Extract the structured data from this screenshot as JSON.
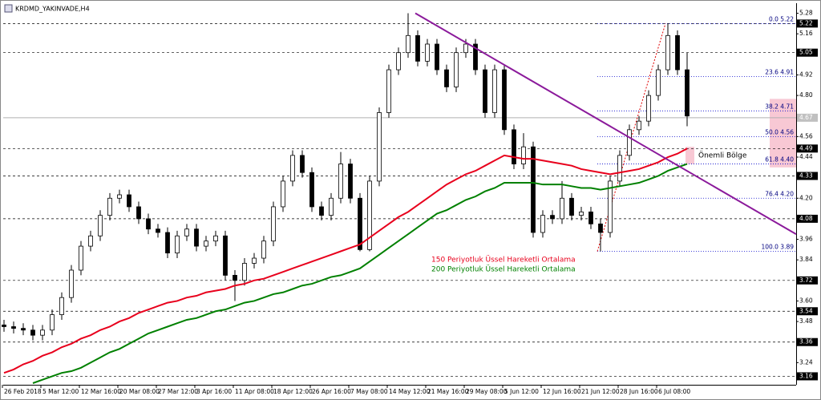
{
  "chart_data": {
    "type": "candlestick",
    "title": "KRDMD_YAKINVADE,H4",
    "x_labels": [
      "26 Feb 2018",
      "5 Mar 12:00",
      "12 Mar 16:00",
      "20 Mar 08:00",
      "27 Mar 12:00",
      "3 Apr 16:00",
      "11 Apr 08:00",
      "18 Apr 12:00",
      "26 Apr 16:00",
      "7 May 08:00",
      "14 May 12:00",
      "21 May 16:00",
      "29 May 08:00",
      "5 Jun 12:00",
      "12 Jun 16:00",
      "21 Jun 12:00",
      "28 Jun 16:00",
      "6 Jul 08:00"
    ],
    "open": [
      3.46,
      3.45,
      3.44,
      3.43,
      3.4,
      3.43,
      3.52,
      3.62,
      3.78,
      3.92,
      3.98,
      4.1,
      4.2,
      4.22,
      4.15,
      4.08,
      4.02,
      4.0,
      3.88,
      3.98,
      4.02,
      3.92,
      3.95,
      3.98,
      3.75,
      3.72,
      3.82,
      3.85,
      3.95,
      4.15,
      4.3,
      4.45,
      4.35,
      4.15,
      4.1,
      4.2,
      4.4,
      4.2,
      3.9,
      4.3,
      4.7,
      4.95,
      5.05,
      5.15,
      5.0,
      5.1,
      4.95,
      4.85,
      5.05,
      5.1,
      4.95,
      4.7,
      4.95,
      4.6,
      4.4,
      4.5,
      4.0,
      4.1,
      4.08,
      4.2,
      4.1,
      4.12,
      4.05,
      4.0,
      4.3,
      4.45,
      4.6,
      4.65,
      4.8,
      4.95,
      5.15,
      4.95
    ],
    "high": [
      3.49,
      3.48,
      3.47,
      3.46,
      3.46,
      3.55,
      3.65,
      3.81,
      3.95,
      4.01,
      4.13,
      4.23,
      4.25,
      4.25,
      4.18,
      4.11,
      4.05,
      4.03,
      4.01,
      4.05,
      4.05,
      3.98,
      4.01,
      4.01,
      3.78,
      3.85,
      3.88,
      3.98,
      4.18,
      4.33,
      4.48,
      4.48,
      4.38,
      4.18,
      4.23,
      4.47,
      4.43,
      4.23,
      4.33,
      4.73,
      4.98,
      5.08,
      5.28,
      5.18,
      5.13,
      5.13,
      4.98,
      5.08,
      5.13,
      5.13,
      4.98,
      4.98,
      4.98,
      4.63,
      4.58,
      4.53,
      4.13,
      4.13,
      4.3,
      4.23,
      4.15,
      4.15,
      4.08,
      4.33,
      4.48,
      4.63,
      4.68,
      4.83,
      4.98,
      5.22,
      5.18,
      5.05
    ],
    "low": [
      3.42,
      3.41,
      3.4,
      3.37,
      3.37,
      3.4,
      3.49,
      3.59,
      3.75,
      3.89,
      3.95,
      4.07,
      4.17,
      4.12,
      4.05,
      3.99,
      3.97,
      3.85,
      3.85,
      3.95,
      3.89,
      3.89,
      3.92,
      3.72,
      3.6,
      3.69,
      3.79,
      3.82,
      3.92,
      4.12,
      4.27,
      4.32,
      4.12,
      4.07,
      4.07,
      4.17,
      4.17,
      3.89,
      3.89,
      4.27,
      4.67,
      4.92,
      5.02,
      4.97,
      4.97,
      4.92,
      4.82,
      4.82,
      5.02,
      4.92,
      4.67,
      4.67,
      4.57,
      4.37,
      4.37,
      3.97,
      3.97,
      4.05,
      4.05,
      4.07,
      4.07,
      4.02,
      3.89,
      3.97,
      4.27,
      4.42,
      4.57,
      4.62,
      4.77,
      4.92,
      4.92,
      4.62
    ],
    "close": [
      3.45,
      3.44,
      3.43,
      3.4,
      3.43,
      3.52,
      3.62,
      3.78,
      3.92,
      3.98,
      4.1,
      4.2,
      4.22,
      4.15,
      4.08,
      4.02,
      4.0,
      3.88,
      3.98,
      4.02,
      3.92,
      3.95,
      3.98,
      3.75,
      3.72,
      3.82,
      3.85,
      3.95,
      4.15,
      4.3,
      4.45,
      4.35,
      4.15,
      4.1,
      4.2,
      4.4,
      4.2,
      3.9,
      4.3,
      4.7,
      4.95,
      5.05,
      5.15,
      5.0,
      5.1,
      4.95,
      4.85,
      5.05,
      5.1,
      4.95,
      4.7,
      4.95,
      4.6,
      4.4,
      4.5,
      4.0,
      4.1,
      4.08,
      4.2,
      4.1,
      4.12,
      4.05,
      4.0,
      4.3,
      4.45,
      4.6,
      4.65,
      4.8,
      4.95,
      5.15,
      4.95,
      4.68
    ],
    "series": [
      {
        "name": "150 Periyotluk Üssel Hareketli Ortalama",
        "color": "#e8001c",
        "values": [
          3.18,
          3.2,
          3.23,
          3.25,
          3.28,
          3.3,
          3.33,
          3.35,
          3.38,
          3.4,
          3.43,
          3.45,
          3.48,
          3.5,
          3.53,
          3.55,
          3.57,
          3.59,
          3.6,
          3.62,
          3.63,
          3.65,
          3.66,
          3.67,
          3.69,
          3.7,
          3.72,
          3.73,
          3.75,
          3.77,
          3.79,
          3.81,
          3.83,
          3.85,
          3.87,
          3.89,
          3.91,
          3.93,
          3.97,
          4.01,
          4.05,
          4.09,
          4.12,
          4.16,
          4.2,
          4.24,
          4.28,
          4.31,
          4.34,
          4.36,
          4.39,
          4.42,
          4.45,
          4.44,
          4.43,
          4.43,
          4.42,
          4.41,
          4.4,
          4.39,
          4.37,
          4.36,
          4.35,
          4.34,
          4.35,
          4.36,
          4.37,
          4.39,
          4.41,
          4.44,
          4.46,
          4.49
        ]
      },
      {
        "name": "200 Periyotluk Üssel Hareketli Ortalama",
        "color": "#008000",
        "values": [
          null,
          null,
          null,
          3.12,
          3.14,
          3.16,
          3.18,
          3.19,
          3.21,
          3.24,
          3.27,
          3.3,
          3.32,
          3.35,
          3.38,
          3.41,
          3.43,
          3.45,
          3.47,
          3.49,
          3.5,
          3.52,
          3.54,
          3.55,
          3.57,
          3.59,
          3.6,
          3.62,
          3.64,
          3.65,
          3.67,
          3.69,
          3.7,
          3.72,
          3.74,
          3.75,
          3.77,
          3.79,
          3.83,
          3.87,
          3.91,
          3.95,
          3.99,
          4.03,
          4.07,
          4.11,
          4.13,
          4.16,
          4.19,
          4.21,
          4.24,
          4.26,
          4.29,
          4.29,
          4.29,
          4.29,
          4.28,
          4.28,
          4.28,
          4.27,
          4.26,
          4.26,
          4.25,
          4.26,
          4.27,
          4.28,
          4.29,
          4.31,
          4.33,
          4.36,
          4.38,
          4.4
        ]
      }
    ],
    "ylim": [
      3.12,
      5.32
    ],
    "yticks": [
      5.28,
      5.16,
      4.92,
      {
        "value": 4.8,
        "label": "4.80"
      },
      4.56,
      4.44,
      {
        "value": 4.2,
        "label": "4.20"
      },
      3.96,
      3.84,
      {
        "value": 3.6,
        "label": "3.60"
      },
      3.48,
      3.24
    ],
    "levels": [
      5.22,
      5.05,
      4.49,
      4.33,
      4.08,
      3.72,
      3.54,
      3.36,
      3.16
    ],
    "current_price": 4.67,
    "trendline": {
      "from": {
        "index": 42.75,
        "price": 5.28
      },
      "to": {
        "index": 82.33,
        "price": 3.99
      },
      "color": "#8b1a9b"
    },
    "fibonacci": {
      "from": {
        "index": 61.67,
        "price": 3.89
      },
      "to": {
        "index": 68.75,
        "price": 5.22
      },
      "levels": [
        {
          "price": 5.22,
          "label": "0.0 5.22"
        },
        {
          "price": 4.91,
          "label": "23.6 4.91"
        },
        {
          "price": 4.71,
          "label": "38.2 4.71"
        },
        {
          "price": 4.56,
          "label": "50.0 4.56"
        },
        {
          "price": 4.4,
          "label": "61.8 4.40"
        },
        {
          "price": 4.2,
          "label": "76.4 4.20"
        },
        {
          "price": 3.89,
          "label": "100.0 3.89"
        }
      ]
    },
    "zones": [
      {
        "top": 4.78,
        "bottom": 4.38
      },
      {
        "label": "Önemli Bölge",
        "top": 4.5,
        "bottom": 4.4
      }
    ]
  }
}
